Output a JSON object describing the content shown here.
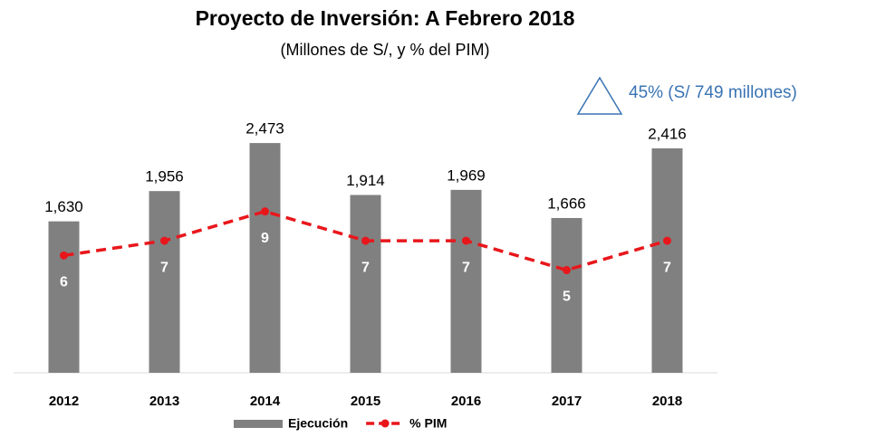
{
  "chart_data": {
    "type": "bar",
    "title": "Proyecto de Inversión: A Febrero 2018",
    "subtitle": "(Millones de S/, y % del PIM)",
    "annotation": "45%  (S/ 749 millones)",
    "categories": [
      "2012",
      "2013",
      "2014",
      "2015",
      "2016",
      "2017",
      "2018"
    ],
    "series": [
      {
        "name": "Ejecución",
        "type": "bar",
        "color": "#808080",
        "values": [
          1630,
          1956,
          2473,
          1914,
          1969,
          1666,
          2416
        ],
        "value_labels": [
          "1,630",
          "1,956",
          "2,473",
          "1,914",
          "1,969",
          "1,666",
          "2,416"
        ]
      },
      {
        "name": "% PIM",
        "type": "line",
        "axis": "y2",
        "color": "#e8171c",
        "values": [
          6,
          7,
          9,
          7,
          7,
          5,
          7
        ]
      }
    ],
    "ylim": [
      0,
      3000
    ],
    "y2lim": [
      -2,
      17
    ],
    "grid": false,
    "legend": "bottom"
  }
}
